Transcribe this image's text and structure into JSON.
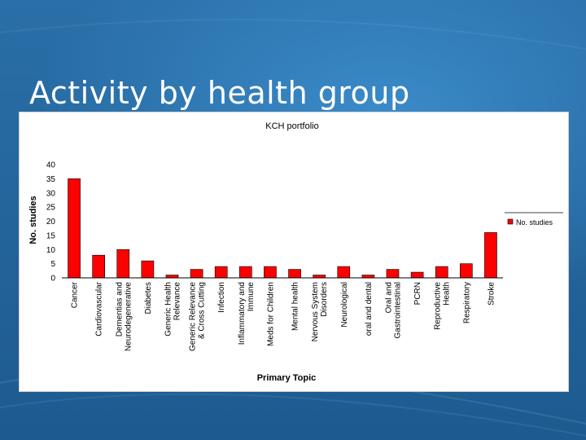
{
  "slide": {
    "title": "Activity by health group"
  },
  "chart_data": {
    "type": "bar",
    "title": "KCH portfolio",
    "xlabel": "Primary Topic",
    "ylabel": "No. studies",
    "ylim": [
      0,
      40
    ],
    "yticks": [
      "0",
      "5",
      "10",
      "15",
      "20",
      "25",
      "30",
      "35",
      "40"
    ],
    "grid": false,
    "legend_position": "right",
    "categories": [
      [
        "Cancer"
      ],
      [
        "Cardiovascular"
      ],
      [
        "Dementias and",
        "Neurodegenerative"
      ],
      [
        "Diabetes"
      ],
      [
        "Generic Health",
        "Relevance"
      ],
      [
        "Generic Relevance",
        "& Cross Cutting"
      ],
      [
        "Infection"
      ],
      [
        "Inflammatory and",
        "Immune"
      ],
      [
        "Meds for Children"
      ],
      [
        "Mental health"
      ],
      [
        "Nervous System",
        "Disorders"
      ],
      [
        "Neurological"
      ],
      [
        "oral and dental"
      ],
      [
        "Oral and",
        "Gastrointestinal"
      ],
      [
        "PCRN"
      ],
      [
        "Reproductive",
        "Health"
      ],
      [
        "Respiratory"
      ],
      [
        "Stroke"
      ]
    ],
    "series": [
      {
        "name": "No. studies",
        "color": "#ff0000",
        "values": [
          35,
          8,
          10,
          6,
          1,
          3,
          4,
          4,
          4,
          3,
          1,
          4,
          1,
          3,
          2,
          4,
          5,
          16
        ]
      }
    ]
  }
}
